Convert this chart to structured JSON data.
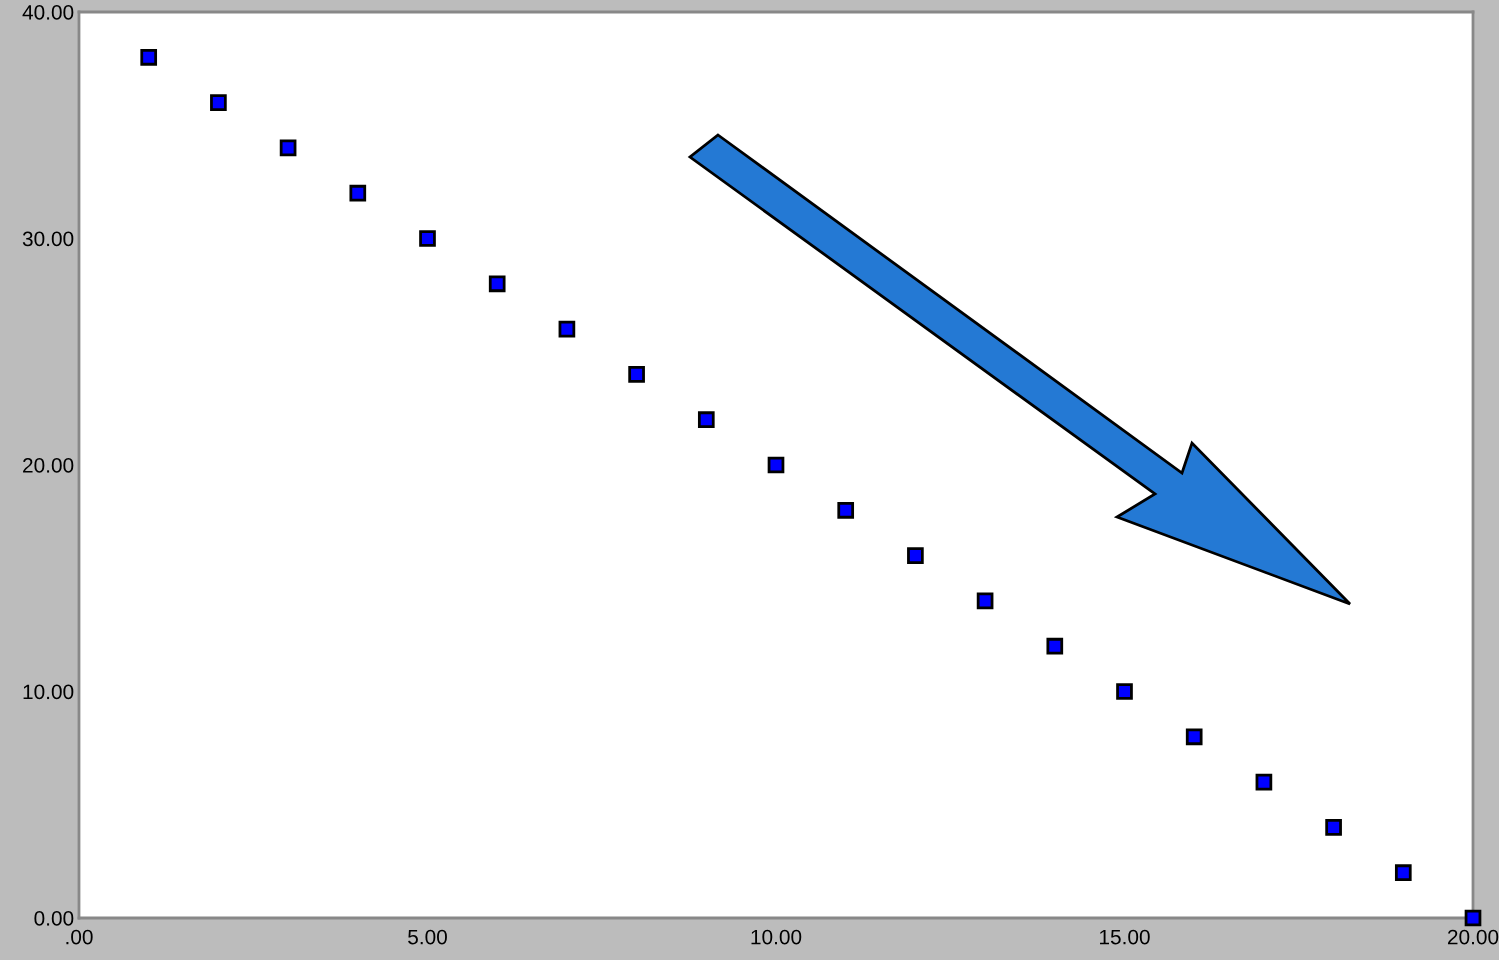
{
  "chart_data": {
    "type": "scatter",
    "x": [
      1,
      2,
      3,
      4,
      5,
      6,
      7,
      8,
      9,
      10,
      11,
      12,
      13,
      14,
      15,
      16,
      17,
      18,
      19,
      20
    ],
    "series": [
      {
        "color": "#0000ff",
        "values": [
          38,
          36,
          34,
          32,
          30,
          28,
          26,
          24,
          22,
          20,
          18,
          16,
          14,
          12,
          10,
          8,
          6,
          4,
          2,
          0
        ]
      }
    ],
    "marker": "square",
    "xlim": [
      0,
      20
    ],
    "ylim": [
      0,
      40
    ],
    "xticks": [
      {
        "value": 0,
        "label": ".00"
      },
      {
        "value": 5,
        "label": "5.00"
      },
      {
        "value": 10,
        "label": "10.00"
      },
      {
        "value": 15,
        "label": "15.00"
      },
      {
        "value": 20,
        "label": "20.00"
      }
    ],
    "yticks": [
      {
        "value": 0,
        "label": "0.00"
      },
      {
        "value": 10,
        "label": "10.00"
      },
      {
        "value": 20,
        "label": "20.00"
      },
      {
        "value": 30,
        "label": "30.00"
      },
      {
        "value": 40,
        "label": "40.00"
      }
    ],
    "grid": false,
    "legend": false
  }
}
